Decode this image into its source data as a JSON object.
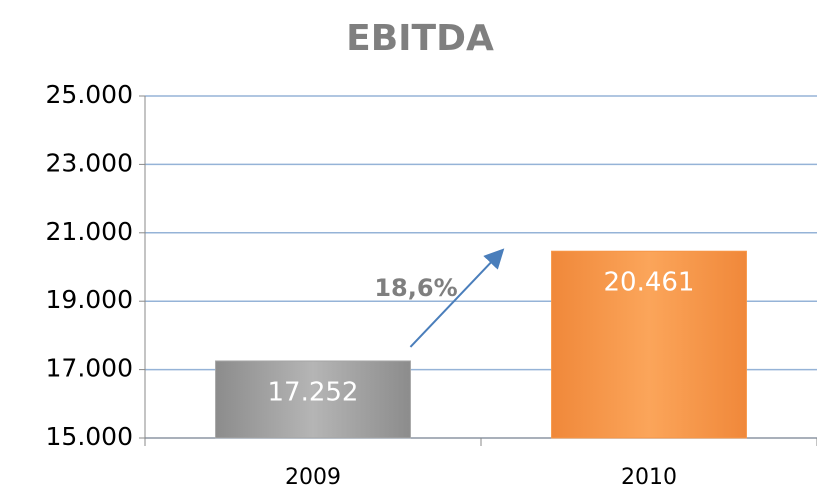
{
  "chart_data": {
    "type": "bar",
    "title": "EBITDA",
    "categories": [
      "2009",
      "2010"
    ],
    "values": [
      17252,
      20461
    ],
    "value_labels": [
      "17.252",
      "20.461"
    ],
    "colors": [
      "#a5a5a5",
      "#f79646"
    ],
    "ylim": [
      15000,
      25000
    ],
    "yticks": [
      {
        "value": 15000,
        "label": "15.000"
      },
      {
        "value": 17000,
        "label": "17.000"
      },
      {
        "value": 19000,
        "label": "19.000"
      },
      {
        "value": 21000,
        "label": "21.000"
      },
      {
        "value": 23000,
        "label": "23.000"
      },
      {
        "value": 25000,
        "label": "25.000"
      }
    ],
    "grid": true,
    "annotation": "18,6%"
  }
}
